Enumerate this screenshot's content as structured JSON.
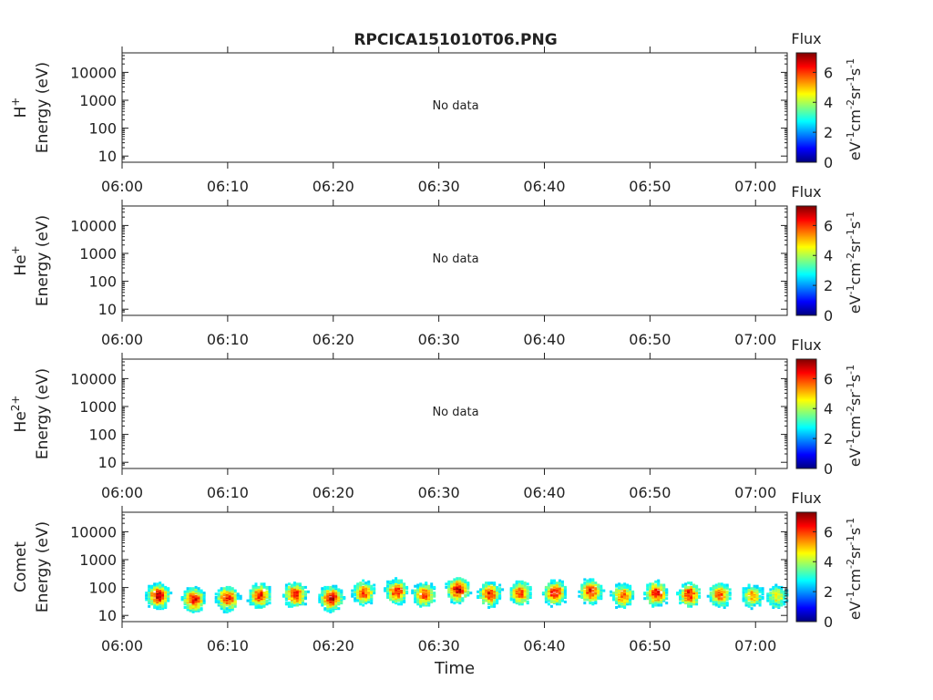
{
  "title": "RPCICA151010T06.PNG",
  "xlabel": "Time",
  "no_data_text": "No data",
  "colorbar": {
    "title": "Flux",
    "unit_parts": [
      "eV",
      "-1",
      "cm",
      "-2",
      "sr",
      "-1",
      "s",
      "-1"
    ],
    "ticks": [
      "0",
      "2",
      "4",
      "6"
    ],
    "range": [
      0,
      7.3
    ],
    "colormap": [
      "#00007f",
      "#0000ff",
      "#007fff",
      "#00ffff",
      "#7fff7f",
      "#ffff00",
      "#ff7f00",
      "#ff0000",
      "#7f0000"
    ]
  },
  "chart_data": {
    "type": "heatmap",
    "x_ticks": [
      "06:00",
      "06:10",
      "06:20",
      "06:30",
      "06:40",
      "06:50",
      "07:00"
    ],
    "x_range_minutes": [
      0,
      63
    ],
    "y_ticks": [
      "10",
      "100",
      "1000",
      "10000"
    ],
    "y_scale": "log",
    "y_range": [
      6,
      50000
    ],
    "panels": [
      {
        "species": "H",
        "charge_sup": "+",
        "y_label": "Energy (eV)",
        "has_data": false
      },
      {
        "species": "He",
        "charge_sup": "+",
        "y_label": "Energy (eV)",
        "has_data": false
      },
      {
        "species": "He",
        "charge_sup": "2+",
        "y_label": "Energy (eV)",
        "has_data": false
      },
      {
        "species": "Comet",
        "charge_sup": "",
        "y_label": "Energy (eV)",
        "has_data": true,
        "bursts_minute": [
          3.3,
          6.7,
          9.9,
          12.9,
          16.3,
          19.7,
          22.8,
          25.9,
          28.5,
          31.7,
          34.7,
          37.6,
          40.9,
          44.3,
          47.3,
          50.5,
          53.6,
          56.5,
          59.6,
          61.9
        ],
        "burst_peak_energy_eV": [
          55,
          40,
          45,
          55,
          60,
          45,
          70,
          80,
          60,
          90,
          65,
          70,
          70,
          80,
          55,
          65,
          60,
          60,
          55,
          50
        ],
        "burst_peak_flux": [
          6.8,
          6.5,
          6.3,
          6.2,
          6.4,
          6.8,
          6.0,
          6.2,
          6.0,
          6.8,
          6.3,
          6.0,
          6.5,
          6.4,
          5.6,
          6.4,
          6.3,
          5.8,
          5.2,
          4.6
        ]
      }
    ]
  }
}
